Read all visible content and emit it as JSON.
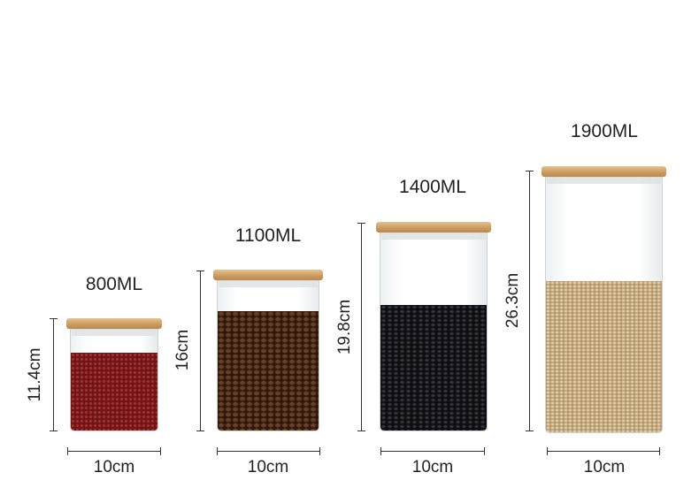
{
  "jars": [
    {
      "capacity": "800ML",
      "height": "11.4cm",
      "width": "10cm",
      "content_color": "#7a1a1a"
    },
    {
      "capacity": "1100ML",
      "height": "16cm",
      "width": "10cm",
      "content_color": "#3b2416"
    },
    {
      "capacity": "1400ML",
      "height": "19.8cm",
      "width": "10cm",
      "content_color": "#15151a"
    },
    {
      "capacity": "1900ML",
      "height": "26.3cm",
      "width": "10cm",
      "content_color": "#c7ad82"
    }
  ]
}
